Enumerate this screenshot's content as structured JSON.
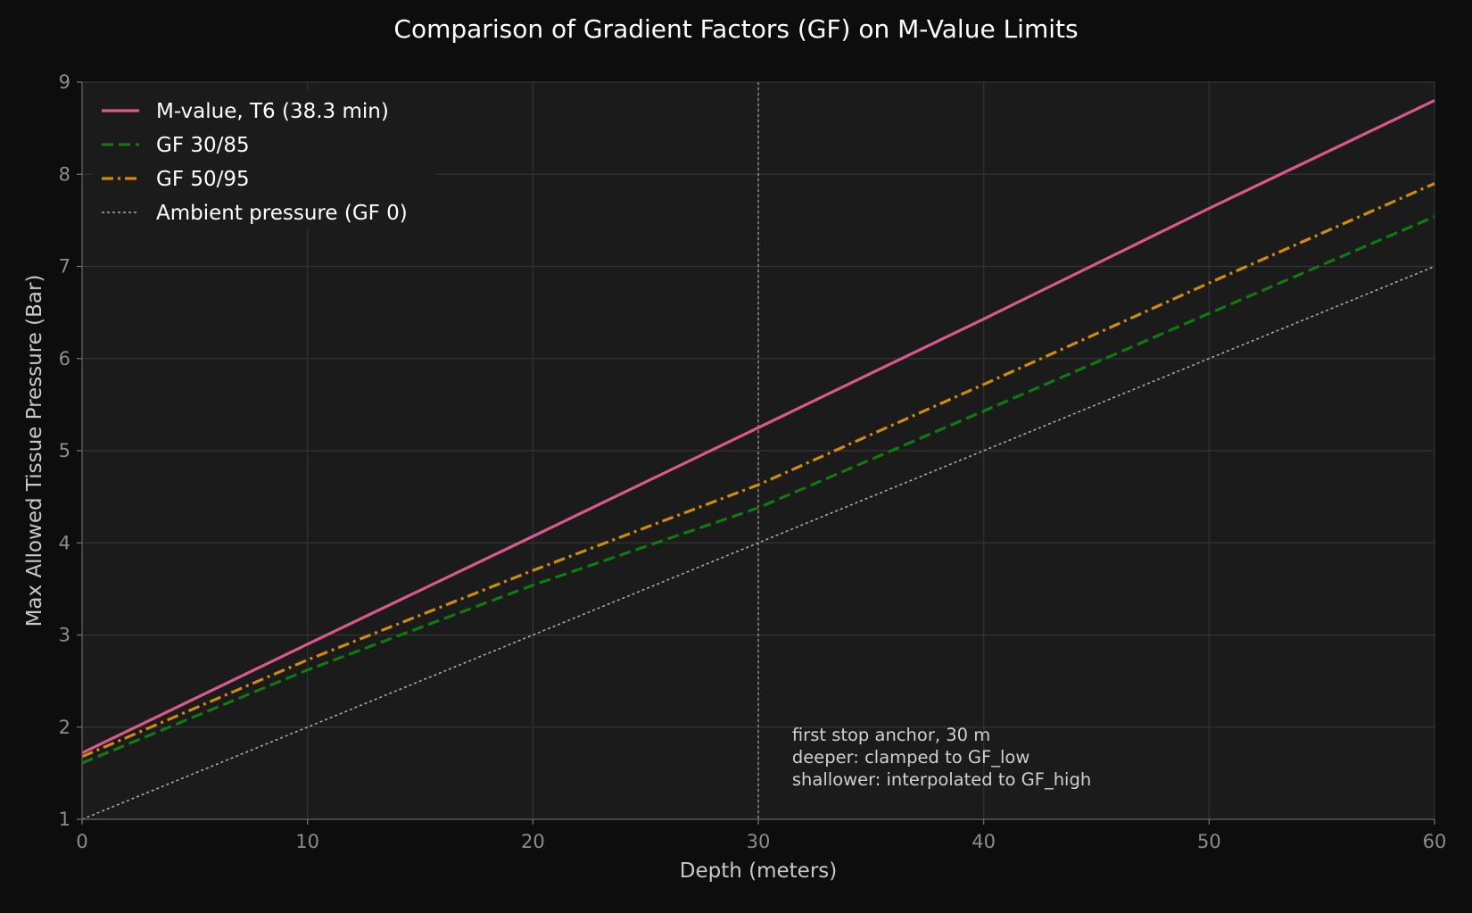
{
  "chart_data": {
    "type": "line",
    "title": "Comparison of Gradient Factors (GF) on M-Value Limits",
    "xlabel": "Depth (meters)",
    "ylabel": "Max Allowed Tissue Pressure (Bar)",
    "xlim": [
      0,
      60
    ],
    "ylim": [
      1,
      9
    ],
    "xticks": [
      0,
      10,
      20,
      30,
      40,
      50,
      60
    ],
    "yticks": [
      1,
      2,
      3,
      4,
      5,
      6,
      7,
      8,
      9
    ],
    "grid": true,
    "legend_position": "top-left",
    "series": [
      {
        "name": "M-value, T6 (38.3 min)",
        "color": "#d9598c",
        "style": "solid",
        "x": [
          0,
          10,
          20,
          30,
          40,
          50,
          60
        ],
        "y": [
          1.72,
          2.9,
          4.07,
          5.25,
          6.43,
          7.63,
          8.8
        ]
      },
      {
        "name": "GF 30/85",
        "color": "#0f7a0f",
        "style": "dashed",
        "x": [
          0,
          10,
          20,
          30,
          40,
          50,
          60
        ],
        "y": [
          1.61,
          2.62,
          3.54,
          4.38,
          5.43,
          6.49,
          7.54
        ]
      },
      {
        "name": "GF 50/95",
        "color": "#d08a0c",
        "style": "dashdot",
        "x": [
          0,
          10,
          20,
          30,
          40,
          50,
          60
        ],
        "y": [
          1.68,
          2.73,
          3.7,
          4.63,
          5.72,
          6.82,
          7.9
        ]
      },
      {
        "name": "Ambient pressure (GF 0)",
        "color": "#a9a9a9",
        "style": "dotted",
        "x": [
          0,
          60
        ],
        "y": [
          1,
          7
        ]
      }
    ],
    "vline": {
      "x": 30,
      "color": "#8a8a8a",
      "style": "dotted"
    },
    "annotation": {
      "x": 31.5,
      "y": 1.85,
      "lines": [
        "first stop anchor, 30 m",
        "deeper: clamped to GF_low",
        "shallower: interpolated to GF_high"
      ]
    }
  }
}
